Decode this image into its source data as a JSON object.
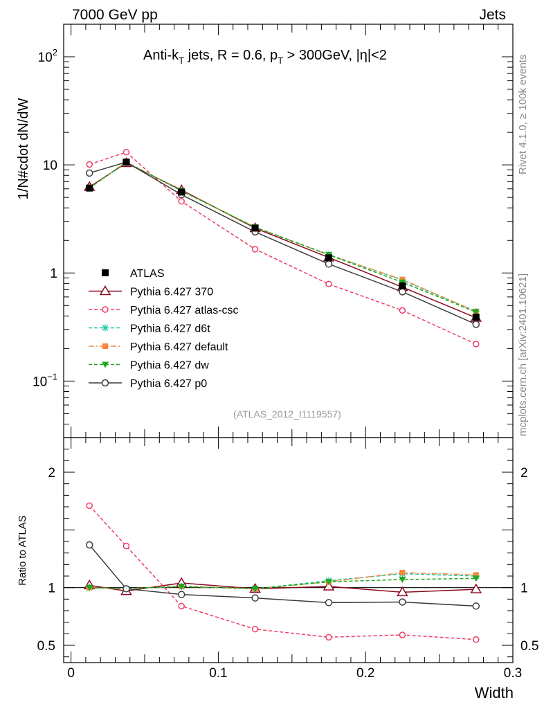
{
  "header": {
    "left": "7000 GeV pp",
    "right": "Jets"
  },
  "side_labels": {
    "rivet": "Rivet 4.1.0, ≥ 100k events",
    "mcplots": "mcplots.cern.ch [arXiv:2401.10621]"
  },
  "watermark": "(ATLAS_2012_I1119557)",
  "chart_data": [
    {
      "type": "line",
      "panel": "main",
      "title_parts": {
        "a": "Anti-k",
        "b": "T",
        "c": " jets, R = 0.6, p",
        "d": "T",
        "e": " > 300GeV, |η|<2"
      },
      "ylabel": "1/N#cdot dN/dW",
      "yscale": "log",
      "ylim": [
        0.03,
        200
      ],
      "xlim": [
        -0.005,
        0.3
      ],
      "yticks": [
        {
          "value": 100,
          "label": "10",
          "sup": "2"
        },
        {
          "value": 10,
          "label": "10",
          "sup": ""
        },
        {
          "value": 1,
          "label": "1",
          "sup": ""
        },
        {
          "value": 0.1,
          "label": "10",
          "sup": "−1"
        }
      ],
      "x": [
        0.0125,
        0.0375,
        0.075,
        0.125,
        0.175,
        0.225,
        0.275
      ],
      "series": [
        {
          "name": "ATLAS",
          "color": "#000000",
          "marker": "square",
          "dash": "none",
          "line": false,
          "values": [
            6.1,
            10.6,
            5.6,
            2.6,
            1.38,
            0.76,
            0.39
          ]
        },
        {
          "name": "Pythia 6.427 370",
          "color": "#8b0a1e",
          "marker": "triangle",
          "dash": "none",
          "line": true,
          "values": [
            6.25,
            10.4,
            5.85,
            2.6,
            1.39,
            0.74,
            0.385
          ]
        },
        {
          "name": "Pythia 6.427 atlas-csc",
          "color": "#f03c64",
          "marker": "circle",
          "dash": "5,3",
          "line": true,
          "values": [
            10.1,
            13.1,
            4.6,
            1.66,
            0.79,
            0.45,
            0.22
          ]
        },
        {
          "name": "Pythia 6.427 d6t",
          "color": "#1fc7a5",
          "marker": "star",
          "dash": "5,3",
          "line": true,
          "values": [
            6.1,
            10.6,
            5.75,
            2.65,
            1.48,
            0.86,
            0.44
          ]
        },
        {
          "name": "Pythia 6.427 default",
          "color": "#f5883c",
          "marker": "filledsquare",
          "dash": "8,3,2,3",
          "line": true,
          "values": [
            6.1,
            10.6,
            5.75,
            2.65,
            1.47,
            0.87,
            0.44
          ]
        },
        {
          "name": "Pythia 6.427 dw",
          "color": "#1fa81f",
          "marker": "triangledown",
          "dash": "5,3",
          "line": true,
          "values": [
            6.1,
            10.6,
            5.75,
            2.65,
            1.47,
            0.82,
            0.435
          ]
        },
        {
          "name": "Pythia 6.427 p0",
          "color": "#3c3c3c",
          "marker": "opencircle",
          "dash": "none",
          "line": true,
          "values": [
            8.4,
            10.6,
            5.3,
            2.4,
            1.21,
            0.67,
            0.335
          ]
        }
      ]
    },
    {
      "type": "line",
      "panel": "ratio",
      "ylabel": "Ratio to ATLAS",
      "ylim": [
        0.35,
        2.3
      ],
      "xlim": [
        -0.005,
        0.3
      ],
      "xlabel": "Width",
      "xticks": [
        {
          "value": 0,
          "label": "0"
        },
        {
          "value": 0.1,
          "label": "0.1"
        },
        {
          "value": 0.2,
          "label": "0.2"
        },
        {
          "value": 0.3,
          "label": "0.3"
        }
      ],
      "yticks": [
        {
          "value": 0.5,
          "label": "0.5"
        },
        {
          "value": 1,
          "label": "1"
        },
        {
          "value": 2,
          "label": "2"
        }
      ],
      "x": [
        0.0125,
        0.0375,
        0.075,
        0.125,
        0.175,
        0.225,
        0.275
      ],
      "series": [
        {
          "name": "Pythia 6.427 370",
          "values": [
            1.02,
            0.97,
            1.04,
            0.99,
            1.01,
            0.96,
            0.985
          ]
        },
        {
          "name": "Pythia 6.427 atlas-csc",
          "values": [
            1.71,
            1.36,
            0.84,
            0.64,
            0.57,
            0.59,
            0.55
          ]
        },
        {
          "name": "Pythia 6.427 d6t",
          "values": [
            1.0,
            0.99,
            1.01,
            0.99,
            1.06,
            1.12,
            1.1
          ]
        },
        {
          "name": "Pythia 6.427 default",
          "values": [
            1.0,
            0.99,
            1.01,
            0.99,
            1.05,
            1.13,
            1.11
          ]
        },
        {
          "name": "Pythia 6.427 dw",
          "values": [
            1.0,
            0.99,
            1.01,
            0.99,
            1.05,
            1.07,
            1.08
          ]
        },
        {
          "name": "Pythia 6.427 p0",
          "values": [
            1.37,
            0.99,
            0.94,
            0.91,
            0.87,
            0.875,
            0.84
          ]
        }
      ]
    }
  ]
}
